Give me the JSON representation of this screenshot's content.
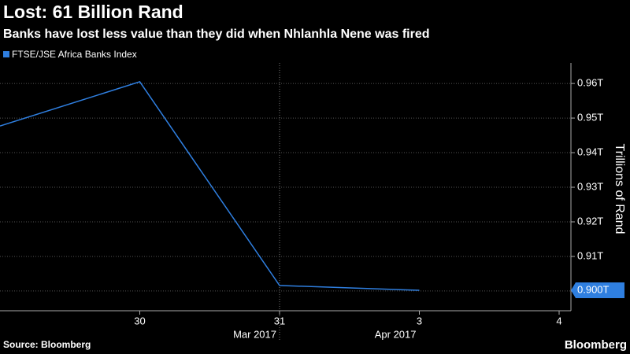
{
  "chart_data": {
    "type": "line",
    "title": "Lost: 61 Billion Rand",
    "subtitle": "Banks have lost less value than they did when Nhlanhla Nene was fired",
    "y_axis_label": "Trillions of Rand",
    "source": "Source: Bloomberg",
    "brand": "Bloomberg",
    "categories": [
      null,
      "30",
      "31",
      "3",
      "4"
    ],
    "x_sublabels": [
      null,
      null,
      "Mar 2017",
      "Apr 2017",
      null
    ],
    "series": [
      {
        "name": "FTSE/JSE Africa Banks Index",
        "color": "#2f7fe0",
        "values": [
          0.9477,
          0.9605,
          0.9016,
          0.9002,
          null
        ],
        "value_labels": [
          null,
          null,
          null,
          "0.900T",
          null
        ]
      }
    ],
    "ylim": [
      0.8943,
      0.9648
    ],
    "yticks": [
      {
        "value": 0.9,
        "label": "0.900T"
      },
      {
        "value": 0.91,
        "label": "0.91T"
      },
      {
        "value": 0.92,
        "label": "0.92T"
      },
      {
        "value": 0.93,
        "label": "0.93T"
      },
      {
        "value": 0.94,
        "label": "0.94T"
      },
      {
        "value": 0.95,
        "label": "0.95T"
      },
      {
        "value": 0.96,
        "label": "0.96T"
      }
    ],
    "grid": true
  }
}
